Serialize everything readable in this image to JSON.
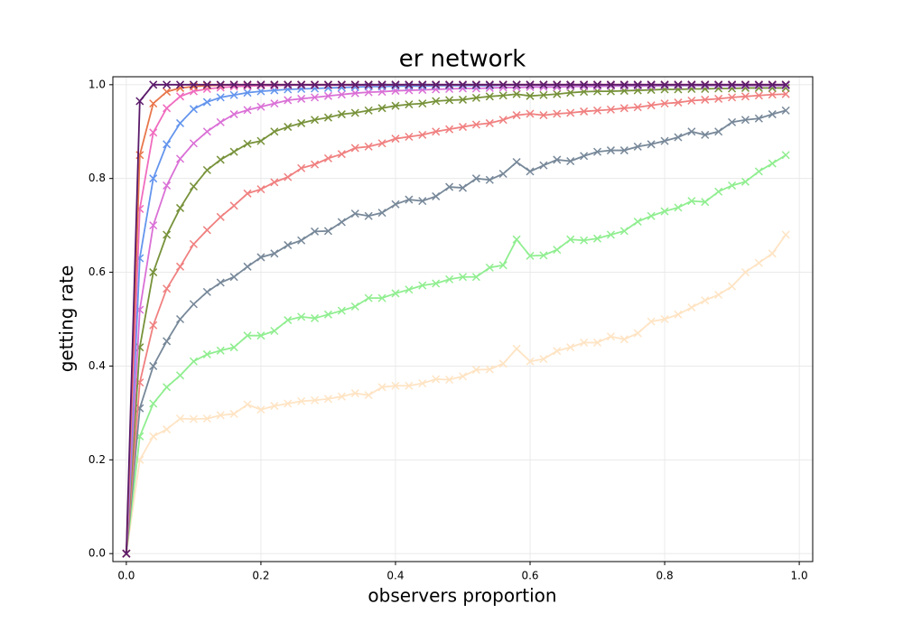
{
  "chart_data": {
    "type": "line",
    "title": "er network",
    "x_label": "observers proportion",
    "y_label": "getting rate",
    "x": [
      0.0,
      0.02,
      0.04,
      0.06,
      0.08,
      0.1,
      0.12,
      0.14,
      0.16,
      0.18,
      0.2,
      0.22,
      0.24,
      0.26,
      0.28,
      0.3,
      0.32,
      0.34,
      0.36,
      0.38,
      0.4,
      0.42,
      0.44,
      0.46,
      0.48,
      0.5,
      0.52,
      0.54,
      0.56,
      0.58,
      0.6,
      0.62,
      0.64,
      0.66,
      0.68,
      0.7,
      0.72,
      0.74,
      0.76,
      0.78,
      0.8,
      0.82,
      0.84,
      0.86,
      0.88,
      0.9,
      0.92,
      0.94,
      0.96,
      0.98
    ],
    "series": [
      {
        "color": "#ffe4c4",
        "values": [
          0,
          0.2,
          0.25,
          0.265,
          0.288,
          0.287,
          0.288,
          0.295,
          0.298,
          0.318,
          0.307,
          0.315,
          0.32,
          0.325,
          0.327,
          0.33,
          0.335,
          0.342,
          0.338,
          0.355,
          0.358,
          0.358,
          0.363,
          0.372,
          0.371,
          0.378,
          0.392,
          0.393,
          0.405,
          0.437,
          0.41,
          0.415,
          0.432,
          0.44,
          0.45,
          0.45,
          0.463,
          0.457,
          0.47,
          0.495,
          0.5,
          0.51,
          0.525,
          0.54,
          0.552,
          0.57,
          0.6,
          0.62,
          0.64,
          0.68
        ]
      },
      {
        "color": "#90ee90",
        "values": [
          0,
          0.25,
          0.32,
          0.355,
          0.38,
          0.41,
          0.425,
          0.433,
          0.44,
          0.465,
          0.465,
          0.475,
          0.498,
          0.505,
          0.502,
          0.51,
          0.518,
          0.527,
          0.545,
          0.545,
          0.555,
          0.563,
          0.572,
          0.576,
          0.585,
          0.59,
          0.59,
          0.61,
          0.615,
          0.67,
          0.635,
          0.636,
          0.648,
          0.67,
          0.668,
          0.672,
          0.68,
          0.688,
          0.708,
          0.72,
          0.73,
          0.738,
          0.752,
          0.75,
          0.772,
          0.785,
          0.793,
          0.815,
          0.832,
          0.85
        ]
      },
      {
        "color": "#778899",
        "values": [
          0,
          0.31,
          0.4,
          0.453,
          0.5,
          0.532,
          0.558,
          0.578,
          0.59,
          0.612,
          0.632,
          0.64,
          0.658,
          0.668,
          0.687,
          0.688,
          0.707,
          0.725,
          0.72,
          0.727,
          0.745,
          0.755,
          0.752,
          0.762,
          0.782,
          0.78,
          0.8,
          0.797,
          0.81,
          0.835,
          0.815,
          0.828,
          0.84,
          0.837,
          0.848,
          0.857,
          0.86,
          0.86,
          0.868,
          0.873,
          0.88,
          0.888,
          0.9,
          0.893,
          0.9,
          0.92,
          0.925,
          0.928,
          0.937,
          0.945
        ]
      },
      {
        "color": "#f08080",
        "values": [
          0,
          0.365,
          0.487,
          0.565,
          0.612,
          0.66,
          0.69,
          0.718,
          0.742,
          0.768,
          0.777,
          0.792,
          0.803,
          0.822,
          0.83,
          0.843,
          0.852,
          0.865,
          0.868,
          0.875,
          0.885,
          0.889,
          0.893,
          0.9,
          0.905,
          0.91,
          0.915,
          0.918,
          0.925,
          0.935,
          0.938,
          0.935,
          0.938,
          0.94,
          0.943,
          0.945,
          0.947,
          0.95,
          0.952,
          0.956,
          0.96,
          0.962,
          0.966,
          0.968,
          0.97,
          0.973,
          0.975,
          0.977,
          0.979,
          0.98
        ]
      },
      {
        "color": "#77923a",
        "values": [
          0,
          0.44,
          0.6,
          0.68,
          0.737,
          0.783,
          0.818,
          0.84,
          0.857,
          0.874,
          0.88,
          0.9,
          0.91,
          0.918,
          0.925,
          0.93,
          0.937,
          0.94,
          0.945,
          0.95,
          0.955,
          0.958,
          0.96,
          0.965,
          0.967,
          0.968,
          0.972,
          0.975,
          0.977,
          0.98,
          0.976,
          0.978,
          0.98,
          0.983,
          0.985,
          0.986,
          0.986,
          0.987,
          0.988,
          0.989,
          0.99,
          0.99,
          0.991,
          0.991,
          0.992,
          0.992,
          0.993,
          0.993,
          0.993,
          0.993
        ]
      },
      {
        "color": "#da70d6",
        "values": [
          0,
          0.52,
          0.7,
          0.785,
          0.842,
          0.875,
          0.9,
          0.92,
          0.937,
          0.946,
          0.953,
          0.96,
          0.967,
          0.97,
          0.973,
          0.976,
          0.979,
          0.982,
          0.984,
          0.985,
          0.987,
          0.988,
          0.989,
          0.99,
          0.991,
          0.992,
          0.992,
          0.993,
          0.994,
          0.994,
          0.995,
          0.995,
          0.995,
          0.996,
          0.996,
          0.996,
          0.997,
          0.997,
          0.997,
          0.997,
          0.998,
          0.998,
          0.998,
          0.998,
          0.998,
          0.998,
          0.998,
          0.998,
          0.998,
          0.998
        ]
      },
      {
        "color": "#6495ed",
        "values": [
          0,
          0.63,
          0.8,
          0.873,
          0.918,
          0.948,
          0.963,
          0.973,
          0.978,
          0.983,
          0.986,
          0.988,
          0.99,
          0.991,
          0.992,
          0.993,
          0.994,
          0.995,
          0.996,
          0.996,
          0.997,
          0.997,
          0.997,
          0.998,
          0.998,
          0.998,
          0.998,
          0.998,
          0.999,
          0.999,
          0.999,
          0.999,
          0.999,
          0.999,
          0.999,
          0.999,
          0.999,
          0.999,
          0.999,
          0.999,
          0.999,
          0.999,
          0.999,
          0.999,
          0.999,
          0.999,
          0.999,
          0.999,
          0.999,
          0.999
        ]
      },
      {
        "color": "#f06cbf",
        "values": [
          0,
          0.735,
          0.898,
          0.95,
          0.975,
          0.986,
          0.991,
          0.994,
          0.996,
          0.997,
          0.998,
          0.998,
          0.999,
          0.999,
          0.999,
          0.999,
          0.999,
          0.999,
          0.999,
          0.999,
          1,
          1,
          1,
          1,
          1,
          1,
          1,
          1,
          1,
          1,
          1,
          1,
          1,
          1,
          1,
          1,
          1,
          1,
          1,
          1,
          1,
          1,
          1,
          1,
          1,
          1,
          1,
          1,
          1,
          1
        ]
      },
      {
        "color": "#e8764b",
        "values": [
          0,
          0.85,
          0.96,
          0.985,
          0.993,
          0.996,
          0.998,
          0.999,
          1,
          1,
          1,
          1,
          1,
          1,
          1,
          1,
          1,
          1,
          1,
          1,
          1,
          1,
          1,
          1,
          1,
          1,
          1,
          1,
          1,
          1,
          1,
          1,
          1,
          1,
          1,
          1,
          1,
          1,
          1,
          1,
          1,
          1,
          1,
          1,
          1,
          1,
          1,
          1,
          1,
          1
        ]
      },
      {
        "color": "#5a1a6a",
        "values": [
          0,
          0.965,
          1,
          1,
          1,
          1,
          1,
          1,
          1,
          1,
          1,
          1,
          1,
          1,
          1,
          1,
          1,
          1,
          1,
          1,
          1,
          1,
          1,
          1,
          1,
          1,
          1,
          1,
          1,
          1,
          1,
          1,
          1,
          1,
          1,
          1,
          1,
          1,
          1,
          1,
          1,
          1,
          1,
          1,
          1,
          1,
          1,
          1,
          1,
          1
        ]
      }
    ],
    "xlim": [
      -0.02,
      1.02
    ],
    "ylim": [
      -0.017,
      1.017
    ],
    "xticks": [
      {
        "value": 0,
        "label": "0.0"
      },
      0.2,
      0.4,
      0.6,
      0.8,
      {
        "value": 1,
        "label": "1.0"
      }
    ],
    "yticks": [
      {
        "value": 0,
        "label": "0.0"
      },
      0.2,
      0.4,
      0.6,
      0.8,
      {
        "value": 1,
        "label": "1.0"
      }
    ],
    "grid": true
  }
}
